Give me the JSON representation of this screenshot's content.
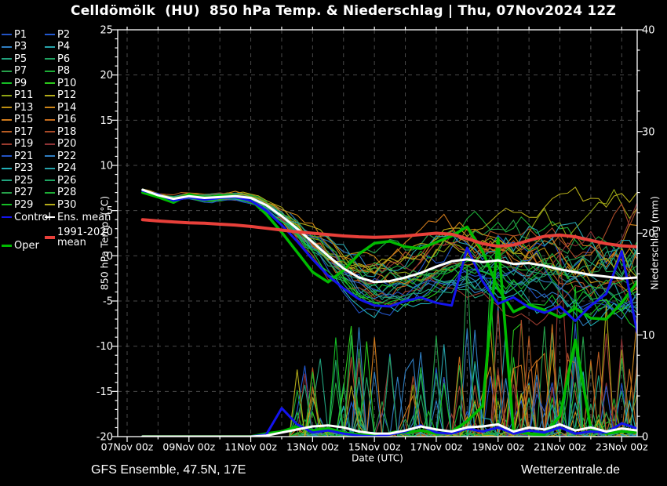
{
  "title": "Celldömölk  (HU)  850 hPa Temp. & Niederschlag | Thu, 07Nov2024 12Z",
  "footer": {
    "left": "GFS Ensemble, 47.5N, 17E",
    "right": "Wetterzentrale.de"
  },
  "colors": {
    "background": "#000000",
    "frame": "#ffffff",
    "grid": "#4a4a4a",
    "text": "#ffffff"
  },
  "legend": {
    "members": [
      {
        "label": "P1",
        "color": "#2353c4"
      },
      {
        "label": "P2",
        "color": "#2258cf"
      },
      {
        "label": "P3",
        "color": "#2f7ec2"
      },
      {
        "label": "P4",
        "color": "#27a3ab"
      },
      {
        "label": "P5",
        "color": "#21a37e"
      },
      {
        "label": "P6",
        "color": "#1fa362"
      },
      {
        "label": "P7",
        "color": "#26a04a"
      },
      {
        "label": "P8",
        "color": "#1dad36"
      },
      {
        "label": "P9",
        "color": "#15bd25"
      },
      {
        "label": "P10",
        "color": "#2cc91c"
      },
      {
        "label": "P11",
        "color": "#8fa414"
      },
      {
        "label": "P12",
        "color": "#b3ab19"
      },
      {
        "label": "P13",
        "color": "#bd8e11"
      },
      {
        "label": "P14",
        "color": "#cc8418"
      },
      {
        "label": "P15",
        "color": "#cf7a1c"
      },
      {
        "label": "P16",
        "color": "#c66d1e"
      },
      {
        "label": "P17",
        "color": "#b85c22"
      },
      {
        "label": "P18",
        "color": "#aa4a28"
      },
      {
        "label": "P19",
        "color": "#9a3b2e"
      },
      {
        "label": "P20",
        "color": "#8e3336"
      },
      {
        "label": "P21",
        "color": "#2353c4"
      },
      {
        "label": "P22",
        "color": "#2f7ec2"
      },
      {
        "label": "P23",
        "color": "#21b0b8"
      },
      {
        "label": "P24",
        "color": "#27a3ab"
      },
      {
        "label": "P25",
        "color": "#21a37e"
      },
      {
        "label": "P26",
        "color": "#1fa362"
      },
      {
        "label": "P27",
        "color": "#26a04a"
      },
      {
        "label": "P28",
        "color": "#1dad36"
      },
      {
        "label": "P29",
        "color": "#15bd25"
      },
      {
        "label": "P30",
        "color": "#b3ab19"
      }
    ],
    "control": {
      "label": "Control",
      "color": "#1414ee"
    },
    "ens_mean": {
      "label": "Ens. mean",
      "color": "#ffffff"
    },
    "climate": {
      "label_line1": "1991-2020",
      "label_line2": "mean",
      "color": "#e8403a"
    },
    "oper": {
      "label": "Oper",
      "color": "#00bb00"
    }
  },
  "chart_data": {
    "type": "line",
    "title": "Celldömölk (HU) 850 hPa Temp. & Niederschlag | Thu, 07Nov2024 12Z",
    "x_axis": {
      "label": "Date (UTC)",
      "tick_labels": [
        "07Nov 00z",
        "09Nov 00z",
        "11Nov 00z",
        "13Nov 00z",
        "15Nov 00z",
        "17Nov 00z",
        "19Nov 00z",
        "21Nov 00z",
        "23Nov 00z"
      ],
      "tick_days": [
        0,
        2,
        4,
        6,
        8,
        10,
        12,
        14,
        16
      ],
      "minor_step_days": 1,
      "range_days": [
        -0.3,
        16.5
      ],
      "epoch": "07Nov2024 00z"
    },
    "y_left": {
      "label": "850 hPa Temp. (°C)",
      "min": -20,
      "max": 25,
      "major_step": 5,
      "minor_step": 1
    },
    "y_right": {
      "label": "Niederschlag (mm)",
      "min": 0,
      "max": 40,
      "major_step": 10,
      "minor_step": 2
    },
    "grid": {
      "vertical_step_days": 1,
      "horizontal_step_degC": 5,
      "dashed": true
    },
    "series_start_day": 0.5,
    "series_step_days": 0.5,
    "series": {
      "climate_mean_temp": {
        "name": "1991-2020 mean",
        "axis": "left",
        "color": "#e8403a",
        "width": 4,
        "values": [
          4.0,
          3.85,
          3.75,
          3.65,
          3.6,
          3.5,
          3.4,
          3.25,
          3.05,
          2.85,
          2.65,
          2.5,
          2.35,
          2.2,
          2.1,
          2.05,
          2.1,
          2.2,
          2.35,
          2.5,
          2.4,
          1.9,
          1.35,
          1.05,
          1.2,
          1.7,
          2.15,
          2.3,
          2.1,
          1.7,
          1.35,
          1.1,
          1.0
        ]
      },
      "ens_mean_temp": {
        "name": "Ens. mean",
        "axis": "left",
        "color": "#ffffff",
        "width": 3,
        "values": [
          7.3,
          6.7,
          6.3,
          6.6,
          6.4,
          6.5,
          6.6,
          6.4,
          5.6,
          4.4,
          3.0,
          1.5,
          0.0,
          -1.4,
          -2.4,
          -2.9,
          -2.8,
          -2.4,
          -1.9,
          -1.2,
          -0.6,
          -0.4,
          -0.7,
          -0.5,
          -0.9,
          -0.8,
          -1.1,
          -1.5,
          -1.8,
          -2.1,
          -2.3,
          -2.5,
          -2.4
        ]
      },
      "control_temp": {
        "name": "Control",
        "axis": "left",
        "color": "#1414ee",
        "width": 3,
        "values": [
          7.2,
          6.8,
          6.1,
          6.5,
          6.2,
          6.4,
          6.5,
          6.1,
          5.0,
          3.4,
          1.6,
          -0.4,
          -2.2,
          -3.6,
          -4.8,
          -5.5,
          -5.6,
          -5.0,
          -4.6,
          -5.2,
          -5.5,
          0.9,
          -2.8,
          -5.3,
          -4.6,
          -5.7,
          -6.3,
          -5.6,
          -7.2,
          -5.5,
          -4.2,
          0.5,
          -8.5
        ]
      },
      "oper_temp": {
        "name": "Oper",
        "axis": "left",
        "color": "#00bb00",
        "width": 3.5,
        "values": [
          7.0,
          6.5,
          5.9,
          6.8,
          6.4,
          6.6,
          6.6,
          6.2,
          4.6,
          2.6,
          0.4,
          -1.8,
          -2.9,
          -1.6,
          0.2,
          1.4,
          1.6,
          1.0,
          0.8,
          1.5,
          2.2,
          3.2,
          0.5,
          -3.6,
          -6.2,
          -5.4,
          -6.0,
          -6.8,
          -5.8,
          -6.9,
          -7.0,
          -5.2,
          -2.9
        ]
      },
      "ens_mean_precip": {
        "name": "Ens. mean precip",
        "axis": "right",
        "color": "#ffffff",
        "width": 3,
        "values": [
          0,
          0,
          0,
          0,
          0,
          0,
          0,
          0,
          0.1,
          0.4,
          0.7,
          1.0,
          1.1,
          0.9,
          0.5,
          0.3,
          0.3,
          0.6,
          1.0,
          0.7,
          0.5,
          0.9,
          1.0,
          1.2,
          0.5,
          0.9,
          0.7,
          1.2,
          0.6,
          0.9,
          0.5,
          0.8,
          0.6
        ]
      },
      "control_precip": {
        "name": "Control precip",
        "axis": "right",
        "color": "#1414ee",
        "width": 3,
        "values": [
          0,
          0,
          0,
          0,
          0,
          0,
          0,
          0,
          0.2,
          2.8,
          1.2,
          0.4,
          0.6,
          0.3,
          0.1,
          0,
          0.2,
          0.5,
          1.1,
          0.4,
          0.3,
          0.8,
          0.5,
          0.9,
          0.3,
          0.6,
          0.4,
          0.9,
          0.3,
          0.5,
          0.4,
          1.3,
          0.8
        ]
      },
      "oper_precip": {
        "name": "Oper precip",
        "axis": "right",
        "color": "#00bb00",
        "width": 3.5,
        "values": [
          0,
          0,
          0,
          0,
          0,
          0,
          0,
          0,
          0.3,
          0.5,
          1.0,
          0.6,
          0.8,
          0.4,
          0.2,
          0.1,
          0.3,
          0.4,
          0.6,
          0.3,
          0.5,
          1.5,
          3.0,
          19.5,
          0.5,
          0.3,
          0.2,
          2.0,
          9.5,
          0.8,
          0.3,
          0.5,
          0.4
        ]
      }
    },
    "ensemble_members": {
      "count": 30,
      "labels": [
        "P1",
        "P2",
        "P3",
        "P4",
        "P5",
        "P6",
        "P7",
        "P8",
        "P9",
        "P10",
        "P11",
        "P12",
        "P13",
        "P14",
        "P15",
        "P16",
        "P17",
        "P18",
        "P19",
        "P20",
        "P21",
        "P22",
        "P23",
        "P24",
        "P25",
        "P26",
        "P27",
        "P28",
        "P29",
        "P30"
      ],
      "colors": [
        "#2353c4",
        "#2258cf",
        "#2f7ec2",
        "#27a3ab",
        "#21a37e",
        "#1fa362",
        "#26a04a",
        "#1dad36",
        "#15bd25",
        "#2cc91c",
        "#8fa414",
        "#b3ab19",
        "#bd8e11",
        "#cc8418",
        "#cf7a1c",
        "#c66d1e",
        "#b85c22",
        "#aa4a28",
        "#9a3b2e",
        "#8e3336",
        "#2353c4",
        "#2f7ec2",
        "#21b0b8",
        "#27a3ab",
        "#21a37e",
        "#1fa362",
        "#26a04a",
        "#1dad36",
        "#15bd25",
        "#b3ab19"
      ],
      "width": 1.1,
      "generator": {
        "seed": 20241107,
        "step_days": 0.25,
        "start_day": 0.5,
        "end_day": 16.5,
        "temp_spread_profile": [
          [
            0.5,
            0.25
          ],
          [
            2,
            0.5
          ],
          [
            4,
            0.7
          ],
          [
            5,
            1.1
          ],
          [
            6,
            2.0
          ],
          [
            7,
            2.9
          ],
          [
            8,
            3.4
          ],
          [
            9,
            3.2
          ],
          [
            10,
            3.3
          ],
          [
            11,
            3.7
          ],
          [
            12,
            4.1
          ],
          [
            13,
            4.3
          ],
          [
            14,
            4.6
          ],
          [
            15,
            5.1
          ],
          [
            16,
            5.7
          ],
          [
            16.5,
            6.0
          ]
        ],
        "precip_start_day": 5.3,
        "precip_wetness_profile": [
          [
            5.3,
            0.55
          ],
          [
            6.5,
            0.6
          ],
          [
            8,
            0.35
          ],
          [
            9.5,
            0.5
          ],
          [
            11,
            0.5
          ],
          [
            12.5,
            0.6
          ],
          [
            14,
            0.55
          ],
          [
            15.5,
            0.5
          ],
          [
            16.5,
            0.45
          ]
        ],
        "precip_amp_profile": [
          [
            5.3,
            7
          ],
          [
            7,
            13
          ],
          [
            9,
            8
          ],
          [
            11,
            12
          ],
          [
            12.5,
            14
          ],
          [
            14,
            12
          ],
          [
            16.5,
            9
          ]
        ]
      }
    }
  }
}
